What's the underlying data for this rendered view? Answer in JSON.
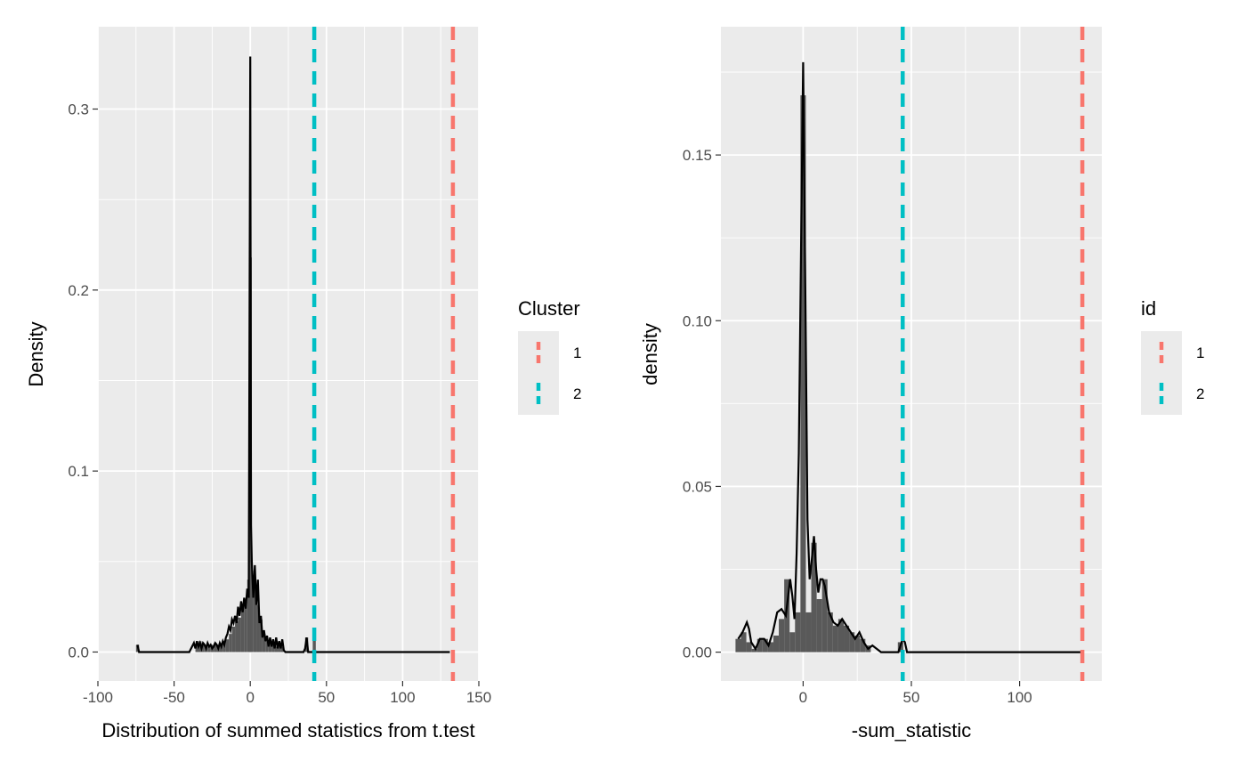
{
  "colors": {
    "panel_bg": "#EBEBEB",
    "grid": "#FFFFFF",
    "hist_fill": "#595959",
    "density_line": "#000000",
    "cluster_1": "#F8766D",
    "cluster_2": "#00BFC4"
  },
  "chart_data": [
    {
      "type": "area",
      "title": "",
      "xlabel": "Distribution of summed statistics from t.test",
      "ylabel": "Density",
      "xlim": [
        -100,
        150
      ],
      "ylim": [
        0,
        0.33
      ],
      "x_ticks": [
        -100,
        -50,
        0,
        50,
        100,
        150
      ],
      "x_tick_labels": [
        "-100",
        "-50",
        "0",
        "50",
        "100",
        "150"
      ],
      "y_ticks": [
        0.0,
        0.1,
        0.2,
        0.3
      ],
      "y_tick_labels": [
        "0.0",
        "0.1",
        "0.2",
        "0.3"
      ],
      "grid": true,
      "legend": {
        "title": "Cluster",
        "position": "right",
        "entries": [
          {
            "label": "1",
            "color": "#F8766D"
          },
          {
            "label": "2",
            "color": "#00BFC4"
          }
        ]
      },
      "histogram": {
        "x": [
          -74,
          -35,
          -33,
          -31,
          -29,
          -27,
          -25,
          -23,
          -21,
          -19,
          -17,
          -15,
          -13,
          -11,
          -9,
          -7,
          -5,
          -3,
          -1,
          0,
          1,
          3,
          5,
          7,
          9,
          11,
          13,
          15,
          17,
          19,
          21,
          37,
          42
        ],
        "y": [
          0.004,
          0.004,
          0.006,
          0.005,
          0.004,
          0.003,
          0.004,
          0.005,
          0.004,
          0.005,
          0.006,
          0.007,
          0.01,
          0.014,
          0.017,
          0.019,
          0.024,
          0.028,
          0.04,
          0.218,
          0.045,
          0.038,
          0.026,
          0.018,
          0.01,
          0.006,
          0.005,
          0.004,
          0.003,
          0.004,
          0.003,
          0.008,
          0.007
        ]
      },
      "density": {
        "x": [
          -74,
          -73,
          -70,
          -40,
          -37,
          -36,
          -35,
          -34,
          -33,
          -32,
          -31,
          -30,
          -29,
          -28,
          -27,
          -26,
          -25,
          -24,
          -23,
          -22,
          -21,
          -20,
          -19,
          -18,
          -17,
          -16,
          -15,
          -14,
          -13,
          -12,
          -11,
          -10,
          -9,
          -8,
          -7,
          -6,
          -5,
          -4,
          -3,
          -2,
          -1,
          0,
          0.5,
          1,
          2,
          3,
          4,
          5,
          6,
          7,
          8,
          9,
          10,
          11,
          12,
          13,
          14,
          15,
          16,
          17,
          18,
          19,
          20,
          21,
          22,
          23,
          25,
          30,
          35,
          36,
          37,
          38,
          40,
          50,
          100,
          131
        ],
        "y": [
          0.004,
          0.0,
          0.0,
          0.0,
          0.005,
          0.002,
          0.006,
          0.003,
          0.005,
          0.002,
          0.005,
          0.004,
          0.002,
          0.005,
          0.003,
          0.004,
          0.002,
          0.003,
          0.005,
          0.004,
          0.002,
          0.005,
          0.003,
          0.006,
          0.004,
          0.008,
          0.01,
          0.014,
          0.012,
          0.018,
          0.016,
          0.02,
          0.016,
          0.025,
          0.02,
          0.028,
          0.022,
          0.03,
          0.024,
          0.035,
          0.03,
          0.329,
          0.07,
          0.05,
          0.03,
          0.048,
          0.026,
          0.04,
          0.016,
          0.02,
          0.008,
          0.012,
          0.006,
          0.009,
          0.003,
          0.008,
          0.003,
          0.007,
          0.002,
          0.008,
          0.002,
          0.006,
          0.002,
          0.007,
          0.001,
          0.0,
          0.0,
          0.0,
          0.0,
          0.002,
          0.008,
          0.0,
          0.0,
          0.0,
          0.0,
          0.0
        ]
      },
      "vlines": [
        {
          "group": "1",
          "x": 133,
          "color": "#F8766D"
        },
        {
          "group": "2",
          "x": 42,
          "color": "#00BFC4"
        }
      ]
    },
    {
      "type": "area",
      "title": "",
      "xlabel": "-sum_statistic",
      "ylabel": "density",
      "xlim": [
        -38,
        138
      ],
      "ylim": [
        0,
        0.18
      ],
      "x_ticks": [
        0,
        50,
        100
      ],
      "x_tick_labels": [
        "0",
        "50",
        "100"
      ],
      "y_ticks": [
        0.0,
        0.05,
        0.1,
        0.15
      ],
      "y_tick_labels": [
        "0.00",
        "0.05",
        "0.10",
        "0.15"
      ],
      "grid": true,
      "legend": {
        "title": "id",
        "position": "right",
        "entries": [
          {
            "label": "1",
            "color": "#F8766D"
          },
          {
            "label": "2",
            "color": "#00BFC4"
          }
        ]
      },
      "histogram": {
        "bin_width": 2.5,
        "x": [
          -30,
          -27.5,
          -25,
          -22.5,
          -20,
          -17.5,
          -15,
          -12.5,
          -10,
          -7.5,
          -5,
          -2.5,
          0,
          2.5,
          5,
          7.5,
          10,
          12.5,
          15,
          17.5,
          20,
          22.5,
          25,
          27.5,
          30,
          45
        ],
        "y": [
          0.004,
          0.006,
          0.003,
          0.001,
          0.004,
          0.004,
          0.003,
          0.005,
          0.01,
          0.022,
          0.006,
          0.012,
          0.168,
          0.012,
          0.033,
          0.016,
          0.022,
          0.012,
          0.008,
          0.01,
          0.008,
          0.006,
          0.005,
          0.004,
          0.002,
          0.003
        ]
      },
      "density": {
        "x": [
          -30,
          -28,
          -26,
          -25,
          -24,
          -22,
          -20,
          -18,
          -16,
          -14,
          -12,
          -10,
          -8,
          -6,
          -5,
          -4,
          -3,
          -2,
          -1,
          0,
          1,
          2,
          3,
          4,
          5,
          6,
          7,
          8,
          9,
          10,
          12,
          14,
          16,
          18,
          20,
          22,
          24,
          26,
          28,
          30,
          32,
          34,
          36,
          38,
          40,
          42,
          44,
          45,
          46,
          47,
          48,
          50,
          60,
          100,
          129
        ],
        "y": [
          0.004,
          0.006,
          0.009,
          0.007,
          0.003,
          0.001,
          0.004,
          0.004,
          0.002,
          0.006,
          0.012,
          0.013,
          0.011,
          0.022,
          0.017,
          0.01,
          0.03,
          0.06,
          0.12,
          0.178,
          0.11,
          0.04,
          0.022,
          0.028,
          0.035,
          0.025,
          0.018,
          0.022,
          0.022,
          0.02,
          0.012,
          0.009,
          0.008,
          0.01,
          0.008,
          0.006,
          0.004,
          0.006,
          0.003,
          0.001,
          0.002,
          0.001,
          0.0,
          0.0,
          0.0,
          0.0,
          0.0,
          0.002,
          0.004,
          0.003,
          0.0,
          0.0,
          0.0,
          0.0,
          0.0
        ]
      },
      "vlines": [
        {
          "group": "1",
          "x": 129,
          "color": "#F8766D"
        },
        {
          "group": "2",
          "x": 46,
          "color": "#00BFC4"
        }
      ]
    }
  ]
}
